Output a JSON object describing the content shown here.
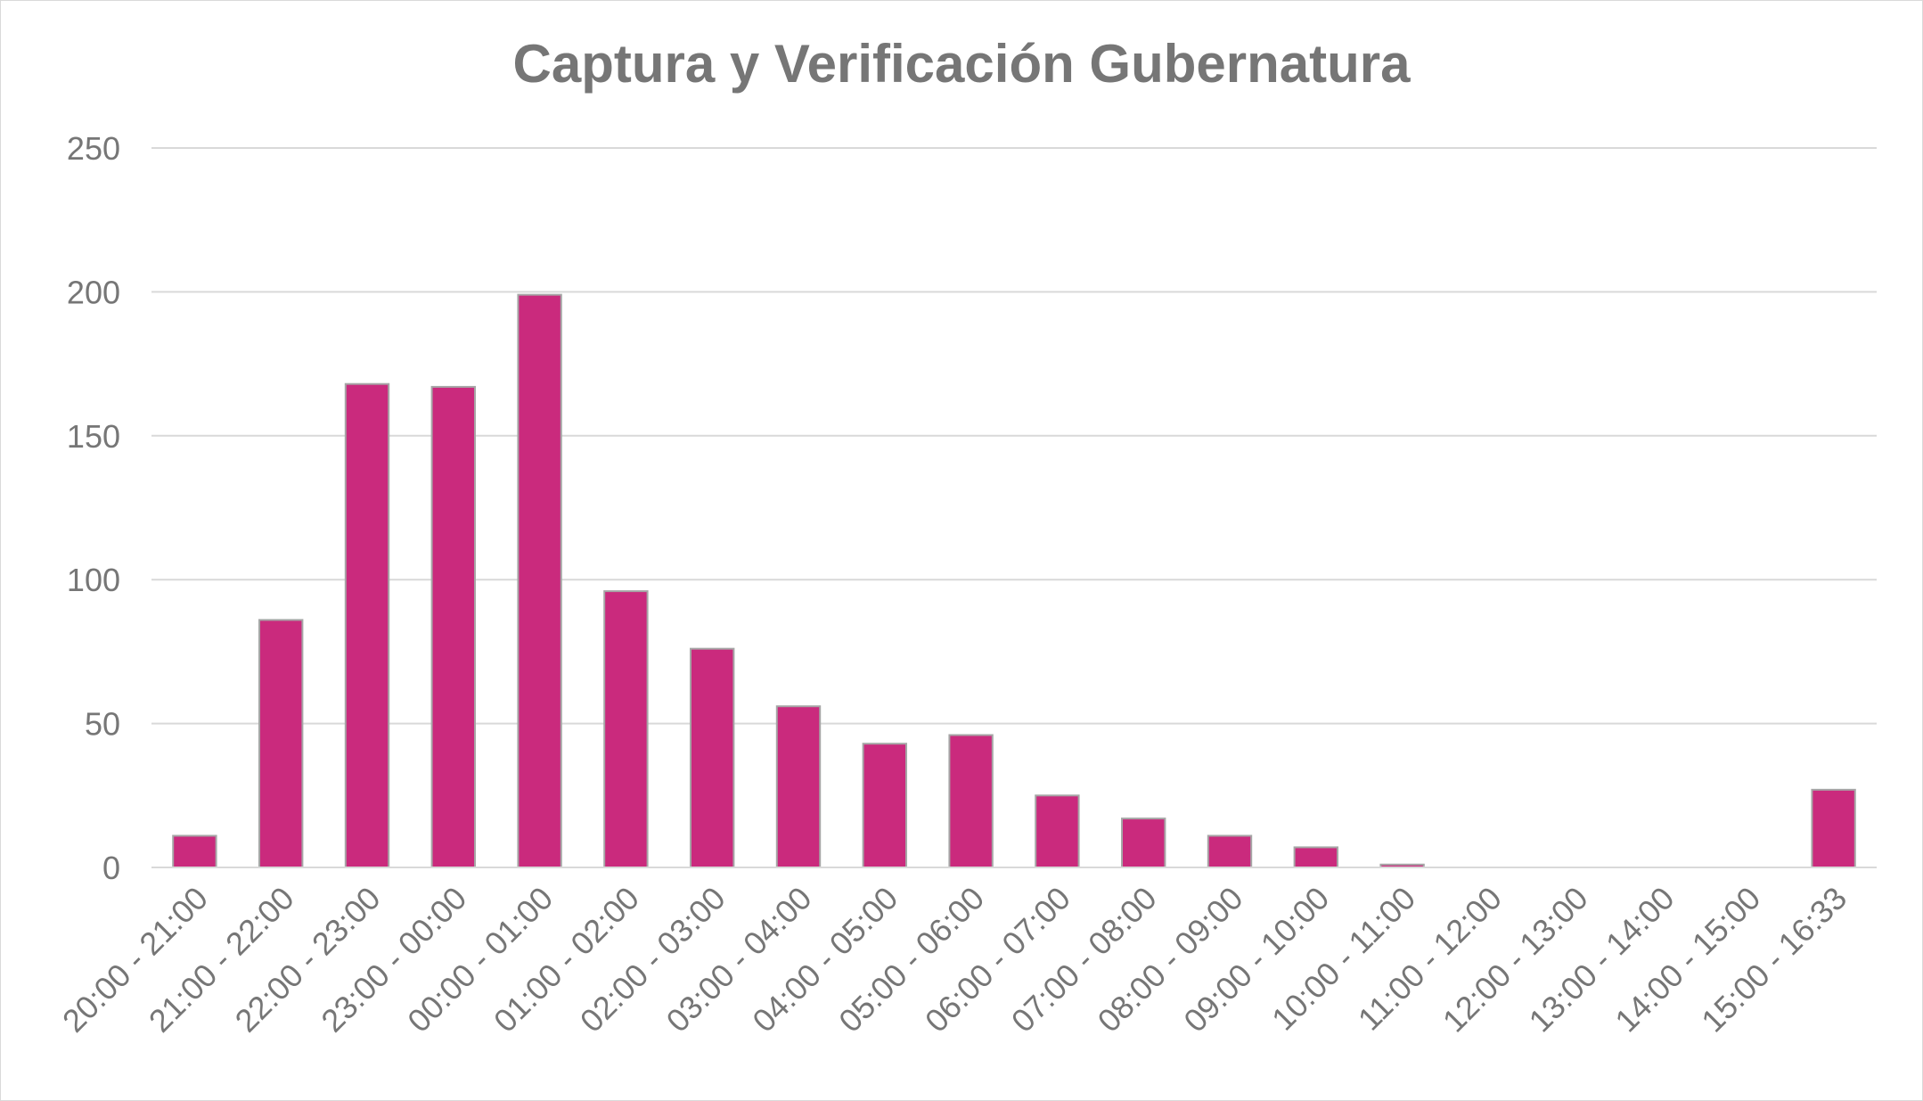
{
  "chart_data": {
    "type": "bar",
    "title": "Captura y Verificación Gubernatura",
    "xlabel": "",
    "ylabel": "",
    "ylim": [
      0,
      250
    ],
    "yticks": [
      0,
      50,
      100,
      150,
      200,
      250
    ],
    "grid": true,
    "legend": "none",
    "categories": [
      "20:00 - 21:00",
      "21:00 - 22:00",
      "22:00 - 23:00",
      "23:00 - 00:00",
      "00:00 - 01:00",
      "01:00 - 02:00",
      "02:00 - 03:00",
      "03:00 - 04:00",
      "04:00 - 05:00",
      "05:00 - 06:00",
      "06:00 - 07:00",
      "07:00 - 08:00",
      "08:00 - 09:00",
      "09:00 - 10:00",
      "10:00 - 11:00",
      "11:00 - 12:00",
      "12:00 - 13:00",
      "13:00 - 14:00",
      "14:00 - 15:00",
      "15:00 - 16:33"
    ],
    "values": [
      11,
      86,
      168,
      167,
      199,
      96,
      76,
      56,
      43,
      46,
      25,
      17,
      11,
      7,
      1,
      0,
      0,
      0,
      0,
      27
    ],
    "colors": {
      "bar_fill": "#CA2A7D",
      "bar_stroke": "#A6A6A6",
      "grid": "#D9D9D9",
      "text": "#767676"
    }
  }
}
